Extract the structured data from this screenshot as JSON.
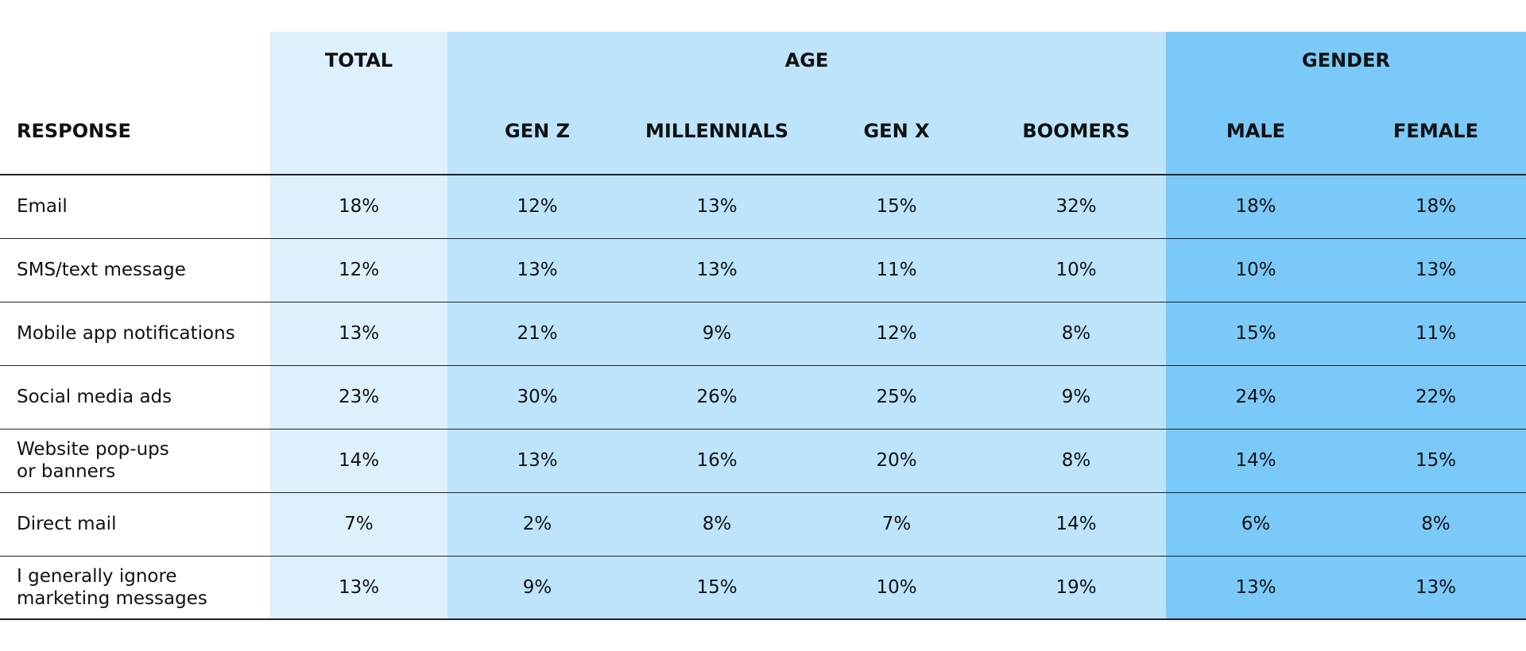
{
  "header": {
    "response": "RESPONSE",
    "groups": [
      "TOTAL",
      "AGE",
      "GENDER"
    ],
    "columns": [
      "GEN Z",
      "MILLENNIALS",
      "GEN X",
      "BOOMERS",
      "MALE",
      "FEMALE"
    ]
  },
  "rows": [
    {
      "label": "Email",
      "values": [
        "18%",
        "12%",
        "13%",
        "15%",
        "32%",
        "18%",
        "18%"
      ]
    },
    {
      "label": "SMS/text message",
      "values": [
        "12%",
        "13%",
        "13%",
        "11%",
        "10%",
        "10%",
        "13%"
      ]
    },
    {
      "label": "Mobile app notifications",
      "values": [
        "13%",
        "21%",
        "9%",
        "12%",
        "8%",
        "15%",
        "11%"
      ]
    },
    {
      "label": "Social media ads",
      "values": [
        "23%",
        "30%",
        "26%",
        "25%",
        "9%",
        "24%",
        "22%"
      ]
    },
    {
      "label": "Website pop-ups\nor banners",
      "values": [
        "14%",
        "13%",
        "16%",
        "20%",
        "8%",
        "14%",
        "15%"
      ]
    },
    {
      "label": "Direct mail",
      "values": [
        "7%",
        "2%",
        "8%",
        "7%",
        "14%",
        "6%",
        "8%"
      ]
    },
    {
      "label": "I generally ignore\nmarketing messages",
      "values": [
        "13%",
        "9%",
        "15%",
        "10%",
        "19%",
        "13%",
        "13%"
      ]
    }
  ]
}
